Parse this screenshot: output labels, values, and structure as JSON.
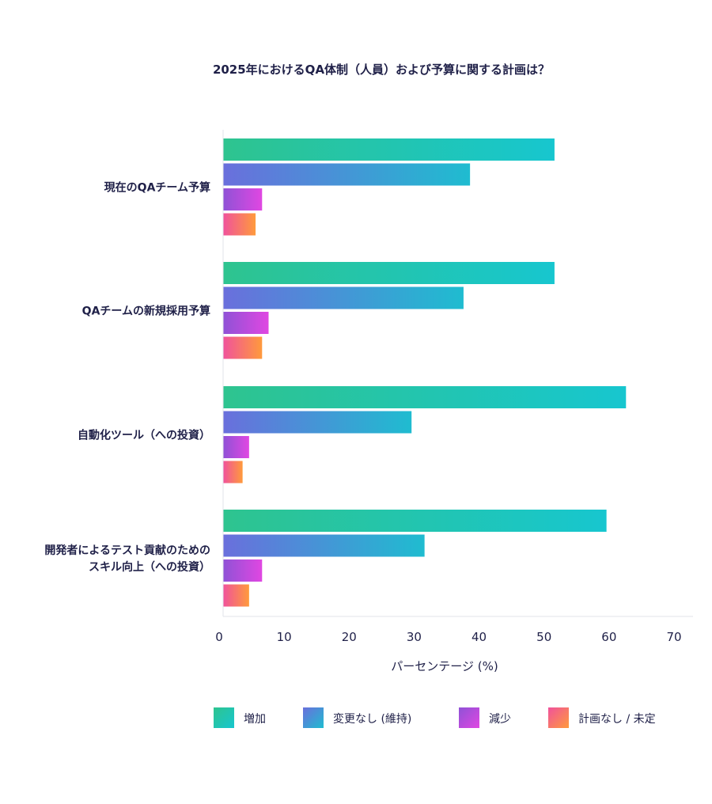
{
  "chart_data": {
    "type": "bar",
    "orientation": "horizontal",
    "title": "2025年におけるQA体制（人員）および予算に関する計画は？",
    "xlabel": "パーセンテージ (%)",
    "ylabel": "",
    "xlim": [
      0,
      70
    ],
    "xticks": [
      0,
      10,
      20,
      30,
      40,
      50,
      60,
      70
    ],
    "grid": false,
    "legend_position": "bottom",
    "categories": [
      [
        "現在のQAチーム予算"
      ],
      [
        "QAチームの新規採用予算"
      ],
      [
        "自動化ツール（への投資）"
      ],
      [
        "開発者によるテスト貢献のための",
        "スキル向上（への投資）"
      ]
    ],
    "series": [
      {
        "name": "増加",
        "values": [
          51,
          51,
          62,
          59
        ],
        "color_start": "#2ec48f",
        "color_end": "#17c6cf"
      },
      {
        "name": "変更なし (維持)",
        "values": [
          38,
          37,
          29,
          31
        ],
        "color_start": "#6a6fdc",
        "color_end": "#1fbcd0"
      },
      {
        "name": "減少",
        "values": [
          6,
          7,
          4,
          6
        ],
        "color_start": "#8f52d6",
        "color_end": "#e047e2"
      },
      {
        "name": "計画なし / 未定",
        "values": [
          5,
          6,
          3,
          4
        ],
        "color_start": "#f0529c",
        "color_end": "#ff9a3c"
      }
    ]
  }
}
